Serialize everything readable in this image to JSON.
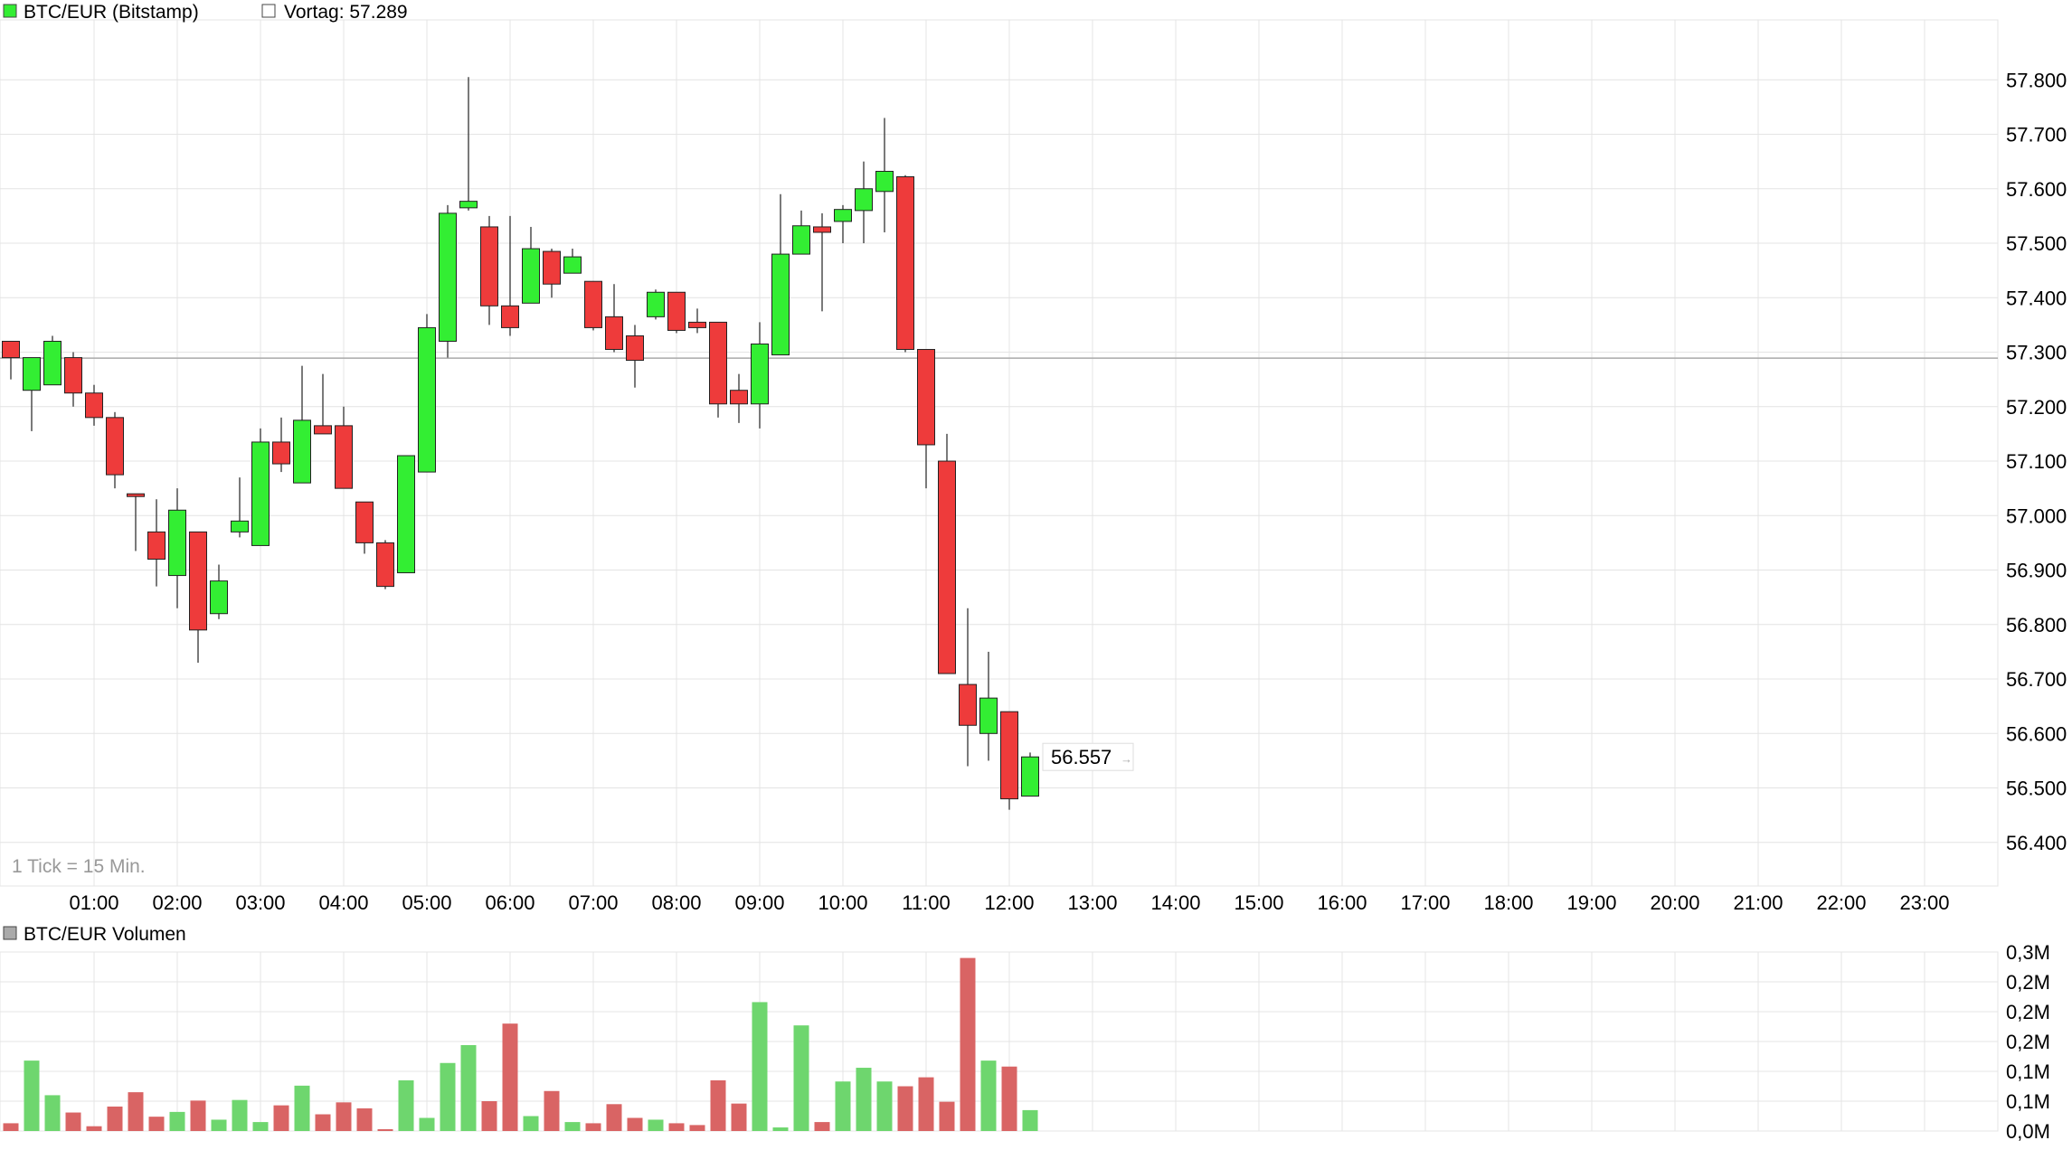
{
  "chart_data": [
    {
      "type": "candlestick",
      "legend": [
        {
          "label": "BTC/EUR (Bitstamp)",
          "swatch": "#33ee33"
        },
        {
          "label": "Vortag: 57.289",
          "swatch": "#ffffff"
        }
      ],
      "previous_close": 57289,
      "last_price_label": "56.557",
      "tick_note": "1 Tick = 15 Min.",
      "x_tick_labels": [
        "01:00",
        "02:00",
        "03:00",
        "04:00",
        "05:00",
        "06:00",
        "07:00",
        "08:00",
        "09:00",
        "10:00",
        "11:00",
        "12:00",
        "13:00",
        "14:00",
        "15:00",
        "16:00",
        "17:00",
        "18:00",
        "19:00",
        "20:00",
        "21:00",
        "22:00",
        "23:00"
      ],
      "y_tick_values": [
        56400,
        56500,
        56600,
        56700,
        56800,
        56900,
        57000,
        57100,
        57200,
        57300,
        57400,
        57500,
        57600,
        57700,
        57800
      ],
      "y_tick_labels": [
        "56.400",
        "56.500",
        "56.600",
        "56.700",
        "56.800",
        "56.900",
        "57.000",
        "57.100",
        "57.200",
        "57.300",
        "57.400",
        "57.500",
        "57.600",
        "57.700",
        "57.800"
      ],
      "ylim": [
        56320,
        57910
      ],
      "colors": {
        "up": "#33ee33",
        "down": "#ee3b3b",
        "grid": "#e4e4e4",
        "reference": "#aaaaaa"
      },
      "candles": [
        {
          "t": "00:00",
          "o": 57320,
          "h": 57320,
          "l": 57250,
          "c": 57290
        },
        {
          "t": "00:15",
          "o": 57230,
          "h": 57290,
          "l": 57155,
          "c": 57290
        },
        {
          "t": "00:30",
          "o": 57240,
          "h": 57330,
          "l": 57240,
          "c": 57320
        },
        {
          "t": "00:45",
          "o": 57290,
          "h": 57300,
          "l": 57200,
          "c": 57225
        },
        {
          "t": "01:00",
          "o": 57225,
          "h": 57240,
          "l": 57165,
          "c": 57180
        },
        {
          "t": "01:15",
          "o": 57180,
          "h": 57190,
          "l": 57050,
          "c": 57075
        },
        {
          "t": "01:30",
          "o": 57040,
          "h": 57040,
          "l": 56935,
          "c": 57035
        },
        {
          "t": "01:45",
          "o": 56970,
          "h": 57030,
          "l": 56870,
          "c": 56920
        },
        {
          "t": "02:00",
          "o": 56890,
          "h": 57050,
          "l": 56830,
          "c": 57010
        },
        {
          "t": "02:15",
          "o": 56970,
          "h": 56970,
          "l": 56730,
          "c": 56790
        },
        {
          "t": "02:30",
          "o": 56820,
          "h": 56910,
          "l": 56810,
          "c": 56880
        },
        {
          "t": "02:45",
          "o": 56970,
          "h": 57070,
          "l": 56960,
          "c": 56990
        },
        {
          "t": "03:00",
          "o": 56945,
          "h": 57160,
          "l": 56945,
          "c": 57135
        },
        {
          "t": "03:15",
          "o": 57135,
          "h": 57180,
          "l": 57080,
          "c": 57095
        },
        {
          "t": "03:30",
          "o": 57060,
          "h": 57275,
          "l": 57060,
          "c": 57175
        },
        {
          "t": "03:45",
          "o": 57165,
          "h": 57260,
          "l": 57155,
          "c": 57150
        },
        {
          "t": "04:00",
          "o": 57165,
          "h": 57200,
          "l": 57050,
          "c": 57050
        },
        {
          "t": "04:15",
          "o": 57025,
          "h": 57025,
          "l": 56930,
          "c": 56950
        },
        {
          "t": "04:30",
          "o": 56950,
          "h": 56955,
          "l": 56865,
          "c": 56870
        },
        {
          "t": "04:45",
          "o": 56895,
          "h": 57110,
          "l": 56895,
          "c": 57110
        },
        {
          "t": "05:00",
          "o": 57080,
          "h": 57370,
          "l": 57080,
          "c": 57345
        },
        {
          "t": "05:15",
          "o": 57320,
          "h": 57570,
          "l": 57290,
          "c": 57555
        },
        {
          "t": "05:30",
          "o": 57565,
          "h": 57805,
          "l": 57560,
          "c": 57577
        },
        {
          "t": "05:45",
          "o": 57530,
          "h": 57550,
          "l": 57350,
          "c": 57385
        },
        {
          "t": "06:00",
          "o": 57385,
          "h": 57550,
          "l": 57330,
          "c": 57345
        },
        {
          "t": "06:15",
          "o": 57390,
          "h": 57530,
          "l": 57390,
          "c": 57490
        },
        {
          "t": "06:30",
          "o": 57485,
          "h": 57490,
          "l": 57400,
          "c": 57425
        },
        {
          "t": "06:45",
          "o": 57445,
          "h": 57490,
          "l": 57445,
          "c": 57475
        },
        {
          "t": "07:00",
          "o": 57430,
          "h": 57430,
          "l": 57340,
          "c": 57345
        },
        {
          "t": "07:15",
          "o": 57365,
          "h": 57425,
          "l": 57300,
          "c": 57305
        },
        {
          "t": "07:30",
          "o": 57330,
          "h": 57350,
          "l": 57235,
          "c": 57285
        },
        {
          "t": "07:45",
          "o": 57365,
          "h": 57415,
          "l": 57360,
          "c": 57410
        },
        {
          "t": "08:00",
          "o": 57410,
          "h": 57410,
          "l": 57335,
          "c": 57340
        },
        {
          "t": "08:15",
          "o": 57355,
          "h": 57380,
          "l": 57335,
          "c": 57345
        },
        {
          "t": "08:30",
          "o": 57355,
          "h": 57355,
          "l": 57180,
          "c": 57205
        },
        {
          "t": "08:45",
          "o": 57230,
          "h": 57260,
          "l": 57170,
          "c": 57205
        },
        {
          "t": "09:00",
          "o": 57205,
          "h": 57355,
          "l": 57160,
          "c": 57315
        },
        {
          "t": "09:15",
          "o": 57295,
          "h": 57590,
          "l": 57295,
          "c": 57480
        },
        {
          "t": "09:30",
          "o": 57480,
          "h": 57560,
          "l": 57480,
          "c": 57532
        },
        {
          "t": "09:45",
          "o": 57530,
          "h": 57555,
          "l": 57375,
          "c": 57520
        },
        {
          "t": "10:00",
          "o": 57540,
          "h": 57570,
          "l": 57500,
          "c": 57562
        },
        {
          "t": "10:15",
          "o": 57560,
          "h": 57650,
          "l": 57500,
          "c": 57600
        },
        {
          "t": "10:30",
          "o": 57595,
          "h": 57730,
          "l": 57520,
          "c": 57632
        },
        {
          "t": "10:45",
          "o": 57622,
          "h": 57625,
          "l": 57300,
          "c": 57305
        },
        {
          "t": "11:00",
          "o": 57305,
          "h": 57305,
          "l": 57050,
          "c": 57130
        },
        {
          "t": "11:15",
          "o": 57100,
          "h": 57150,
          "l": 56710,
          "c": 56710
        },
        {
          "t": "11:30",
          "o": 56690,
          "h": 56830,
          "l": 56540,
          "c": 56615
        },
        {
          "t": "11:45",
          "o": 56600,
          "h": 56750,
          "l": 56550,
          "c": 56665
        },
        {
          "t": "12:00",
          "o": 56640,
          "h": 56640,
          "l": 56460,
          "c": 56480
        },
        {
          "t": "12:15",
          "o": 56485,
          "h": 56565,
          "l": 56485,
          "c": 56557
        }
      ]
    },
    {
      "type": "bar",
      "legend": [
        {
          "label": "BTC/EUR Volumen",
          "swatch": "#aaaaaa"
        }
      ],
      "y_tick_values": [
        0,
        0.05,
        0.1,
        0.15,
        0.2,
        0.25,
        0.3
      ],
      "y_tick_labels": [
        "0,0M",
        "0,1M",
        "0,1M",
        "0,2M",
        "0,2M",
        "0,2M",
        "0,3M"
      ],
      "ylim": [
        0,
        0.3
      ],
      "colors": {
        "up": "#6ed66e",
        "down": "#d96464",
        "grid": "#e4e4e4"
      },
      "unit": "M",
      "values": [
        0.013,
        0.118,
        0.06,
        0.031,
        0.008,
        0.041,
        0.065,
        0.024,
        0.032,
        0.051,
        0.019,
        0.052,
        0.015,
        0.043,
        0.076,
        0.028,
        0.048,
        0.038,
        0.003,
        0.085,
        0.022,
        0.114,
        0.144,
        0.05,
        0.18,
        0.025,
        0.067,
        0.015,
        0.013,
        0.045,
        0.022,
        0.019,
        0.013,
        0.01,
        0.085,
        0.046,
        0.216,
        0.006,
        0.177,
        0.015,
        0.083,
        0.106,
        0.083,
        0.075,
        0.09,
        0.049,
        0.29,
        0.118,
        0.108,
        0.035
      ]
    }
  ]
}
